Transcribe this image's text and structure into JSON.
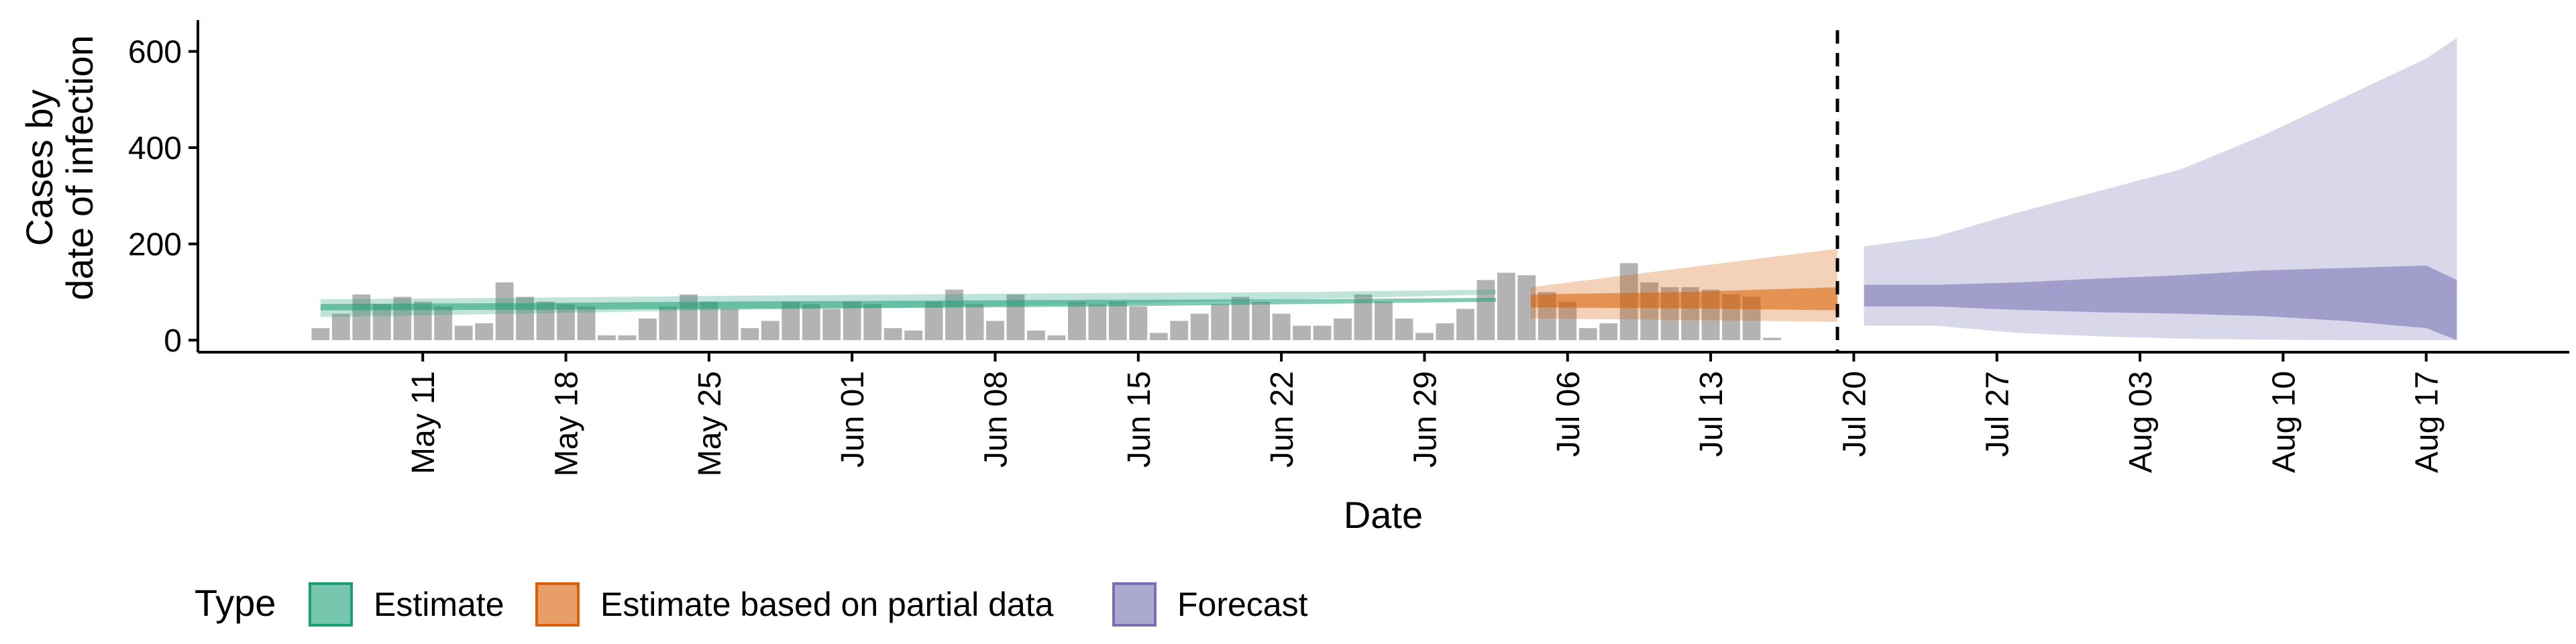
{
  "chart_data": {
    "type": "bar+area",
    "xlabel": "Date",
    "ylabel": [
      "Cases by",
      "date of infection"
    ],
    "yticks": [
      0,
      200,
      400,
      600
    ],
    "ylim": [
      -25,
      665
    ],
    "x_tick_labels": [
      "May 11",
      "May 18",
      "May 25",
      "Jun 01",
      "Jun 08",
      "Jun 15",
      "Jun 22",
      "Jun 29",
      "Jul 06",
      "Jul 13",
      "Jul 20",
      "Jul 27",
      "Aug 03",
      "Aug 10",
      "Aug 17"
    ],
    "x_tick_days": [
      10,
      17,
      24,
      31,
      38,
      45,
      52,
      59,
      66,
      73,
      80,
      87,
      94,
      101,
      108
    ],
    "x_range_days": [
      -1,
      115
    ],
    "day0": "May 01",
    "cutoff_day": 79.2,
    "bars": {
      "start_day": 5,
      "color": "#b3b3b3",
      "values": [
        25,
        55,
        95,
        75,
        90,
        80,
        70,
        30,
        35,
        120,
        90,
        80,
        75,
        70,
        10,
        10,
        45,
        70,
        95,
        80,
        65,
        25,
        40,
        80,
        75,
        65,
        80,
        75,
        25,
        20,
        80,
        105,
        75,
        40,
        95,
        20,
        10,
        80,
        75,
        80,
        70,
        15,
        40,
        55,
        75,
        90,
        80,
        55,
        30,
        30,
        45,
        95,
        80,
        45,
        15,
        35,
        65,
        125,
        140,
        135,
        100,
        80,
        25,
        35,
        160,
        120,
        110,
        110,
        105,
        95,
        90,
        5
      ]
    },
    "series": [
      {
        "name": "Estimate",
        "color": "#1b9e77",
        "start_day": 5,
        "end_day": 62.5,
        "outer": [
          [
            48,
            85
          ],
          [
            55,
            88
          ],
          [
            62,
            92
          ],
          [
            68,
            95
          ],
          [
            75,
            98
          ],
          [
            85,
            100
          ],
          [
            95,
            105
          ]
        ],
        "inner": [
          [
            62,
            75
          ],
          [
            63,
            77
          ],
          [
            65,
            80
          ],
          [
            67,
            82
          ],
          [
            70,
            84
          ],
          [
            75,
            85
          ],
          [
            80,
            88
          ]
        ]
      },
      {
        "name": "Estimate based on partial data",
        "color": "#d95f02",
        "start_day": 64.2,
        "end_day": 79.2,
        "outer": [
          [
            45,
            110
          ],
          [
            42,
            150
          ],
          [
            38,
            190
          ]
        ],
        "inner": [
          [
            68,
            95
          ],
          [
            66,
            100
          ],
          [
            62,
            110
          ]
        ]
      },
      {
        "name": "Forecast",
        "color": "#7570b3",
        "start_day": 80.5,
        "end_day": 109.5,
        "points": [
          {
            "d": 80.5,
            "lo": 30,
            "hi": 195,
            "ilo": 70,
            "ihi": 115
          },
          {
            "d": 84,
            "lo": 30,
            "hi": 215,
            "ilo": 70,
            "ihi": 115
          },
          {
            "d": 88,
            "lo": 15,
            "hi": 265,
            "ilo": 63,
            "ihi": 120
          },
          {
            "d": 92,
            "lo": 8,
            "hi": 310,
            "ilo": 58,
            "ihi": 128
          },
          {
            "d": 96,
            "lo": 3,
            "hi": 355,
            "ilo": 55,
            "ihi": 135
          },
          {
            "d": 100,
            "lo": 1,
            "hi": 425,
            "ilo": 50,
            "ihi": 145
          },
          {
            "d": 104,
            "lo": 0,
            "hi": 505,
            "ilo": 40,
            "ihi": 150
          },
          {
            "d": 108,
            "lo": 0,
            "hi": 585,
            "ilo": 25,
            "ihi": 155
          },
          {
            "d": 109.5,
            "lo": 0,
            "hi": 628,
            "ilo": 0,
            "ihi": 125
          }
        ]
      }
    ],
    "legend": {
      "title": "Type",
      "position": "bottom",
      "items": [
        "Estimate",
        "Estimate based on partial data",
        "Forecast"
      ]
    }
  }
}
